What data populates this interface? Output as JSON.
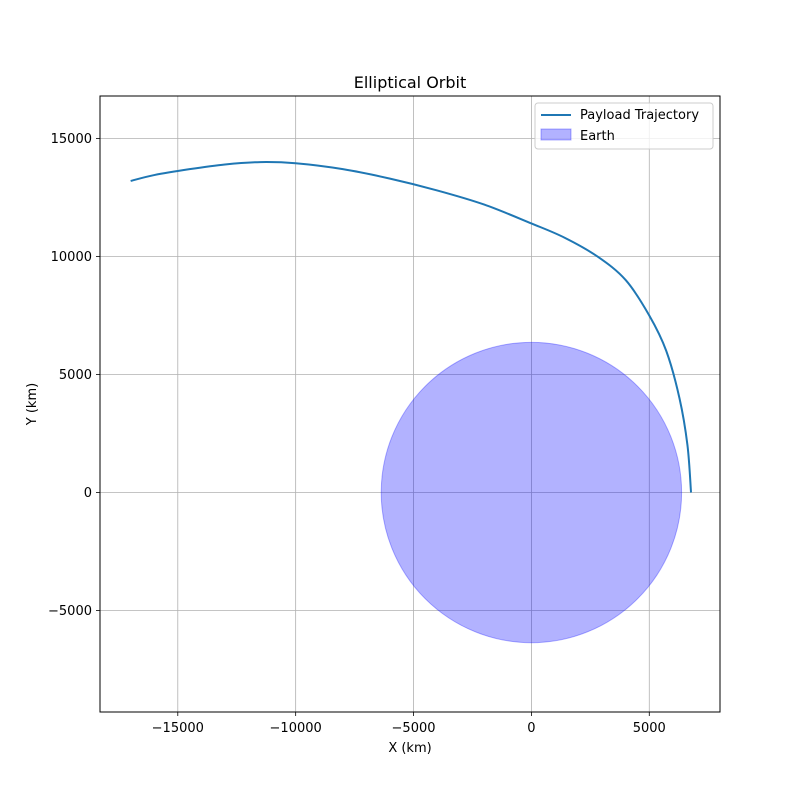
{
  "chart_data": {
    "type": "line",
    "title": "Elliptical Orbit",
    "xlabel": "X (km)",
    "ylabel": "Y (km)",
    "xlim": [
      -18300,
      8000
    ],
    "ylim": [
      -9300,
      16800
    ],
    "xticks": [
      -15000,
      -10000,
      -5000,
      0,
      5000
    ],
    "yticks": [
      -5000,
      0,
      5000,
      10000,
      15000
    ],
    "grid": true,
    "legend": {
      "placement": "top-right",
      "entries": [
        "Payload Trajectory",
        "Earth"
      ]
    },
    "series": [
      {
        "name": "Payload Trajectory",
        "color": "#1f77b4",
        "x": [
          6771,
          6620,
          6280,
          5720,
          5000,
          4000,
          2800,
          1400,
          0,
          -2000,
          -4000,
          -6000,
          -8000,
          -10000,
          -11500,
          -13000,
          -14500,
          -16000,
          -17000
        ],
        "y": [
          0,
          2000,
          4000,
          6000,
          7500,
          9000,
          10000,
          10800,
          11400,
          12200,
          12800,
          13300,
          13700,
          13950,
          14000,
          13900,
          13700,
          13450,
          13200
        ]
      }
    ],
    "shapes": [
      {
        "name": "Earth",
        "kind": "circle",
        "center": [
          0,
          0
        ],
        "radius": 6371,
        "fill": "#0000ff",
        "fill_opacity": 0.3,
        "edge_opacity": 0.3
      }
    ],
    "colors": {
      "grid": "#b0b0b0",
      "spine": "#000000",
      "legend_border": "#cccccc"
    }
  }
}
